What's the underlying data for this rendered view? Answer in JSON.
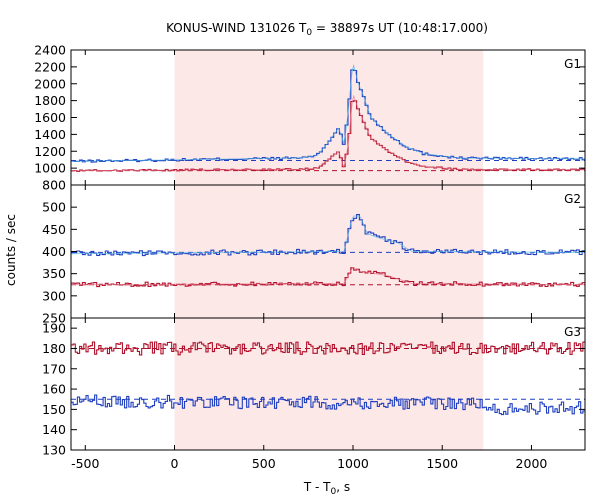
{
  "chart_data": {
    "type": "line",
    "title": "KONUS-WIND 131026 T",
    "title_sub": "0",
    "title_rest": " = 38897s UT (10:48:17.000)",
    "xlabel": "T - T",
    "xlabel_sub": "0",
    "xlabel_rest": ", s",
    "ylabel": "counts / sec",
    "xlim": [
      -580,
      2300
    ],
    "xticks": [
      -500,
      0,
      500,
      1000,
      1500,
      2000
    ],
    "shaded_interval": [
      0,
      1730
    ],
    "shaded_color": "#fde8e8",
    "colors": {
      "blue": "#1f3fbf",
      "light_blue": "#4fb3e8",
      "red": "#b0102a",
      "pink": "#e87890"
    },
    "panels": [
      {
        "label": "G1",
        "ylim": [
          800,
          2400
        ],
        "yticks": [
          800,
          1000,
          1200,
          1400,
          1600,
          1800,
          2000,
          2200,
          2400
        ],
        "series": [
          {
            "color_key": "blue",
            "dashed_level": 1090,
            "profile": [
              [
                -580,
                1080
              ],
              [
                700,
                1120
              ],
              [
                800,
                1150
              ],
              [
                860,
                1300
              ],
              [
                920,
                1480
              ],
              [
                950,
                1280
              ],
              [
                975,
                1700
              ],
              [
                1000,
                2250
              ],
              [
                1030,
                2000
              ],
              [
                1060,
                1850
              ],
              [
                1100,
                1600
              ],
              [
                1200,
                1400
              ],
              [
                1300,
                1250
              ],
              [
                1400,
                1170
              ],
              [
                1600,
                1120
              ],
              [
                2300,
                1110
              ]
            ],
            "noise": 15
          },
          {
            "color_key": "red",
            "dashed_level": 970,
            "profile": [
              [
                -580,
                970
              ],
              [
                700,
                985
              ],
              [
                800,
                1000
              ],
              [
                860,
                1100
              ],
              [
                920,
                1200
              ],
              [
                950,
                1000
              ],
              [
                975,
                1300
              ],
              [
                1000,
                1880
              ],
              [
                1030,
                1700
              ],
              [
                1060,
                1550
              ],
              [
                1100,
                1350
              ],
              [
                1200,
                1200
              ],
              [
                1300,
                1080
              ],
              [
                1400,
                1020
              ],
              [
                1600,
                985
              ],
              [
                2300,
                980
              ]
            ],
            "noise": 10
          }
        ]
      },
      {
        "label": "G2",
        "ylim": [
          250,
          550
        ],
        "yticks": [
          250,
          300,
          350,
          400,
          450,
          500
        ],
        "series": [
          {
            "color_key": "blue",
            "dashed_level": 398,
            "profile": [
              [
                -580,
                395
              ],
              [
                950,
                400
              ],
              [
                980,
                450
              ],
              [
                1000,
                480
              ],
              [
                1040,
                480
              ],
              [
                1080,
                440
              ],
              [
                1150,
                430
              ],
              [
                1250,
                420
              ],
              [
                1330,
                400
              ],
              [
                2300,
                398
              ]
            ],
            "noise": 6
          },
          {
            "color_key": "red",
            "dashed_level": 325,
            "profile": [
              [
                -580,
                325
              ],
              [
                950,
                328
              ],
              [
                980,
                350
              ],
              [
                1000,
                365
              ],
              [
                1040,
                355
              ],
              [
                1100,
                352
              ],
              [
                1200,
                345
              ],
              [
                1330,
                328
              ],
              [
                2300,
                325
              ]
            ],
            "noise": 5
          }
        ]
      },
      {
        "label": "G3",
        "ylim": [
          130,
          195
        ],
        "yticks": [
          130,
          140,
          150,
          160,
          170,
          180,
          190
        ],
        "series": [
          {
            "color_key": "red",
            "dashed_level": 180,
            "profile": [
              [
                -580,
                180
              ],
              [
                2300,
                180
              ]
            ],
            "noise": 3.2
          },
          {
            "color_key": "blue",
            "dashed_level": 155,
            "profile": [
              [
                -580,
                154
              ],
              [
                1700,
                153
              ],
              [
                1750,
                150
              ],
              [
                2300,
                151
              ]
            ],
            "noise": 3.2
          }
        ]
      }
    ]
  }
}
